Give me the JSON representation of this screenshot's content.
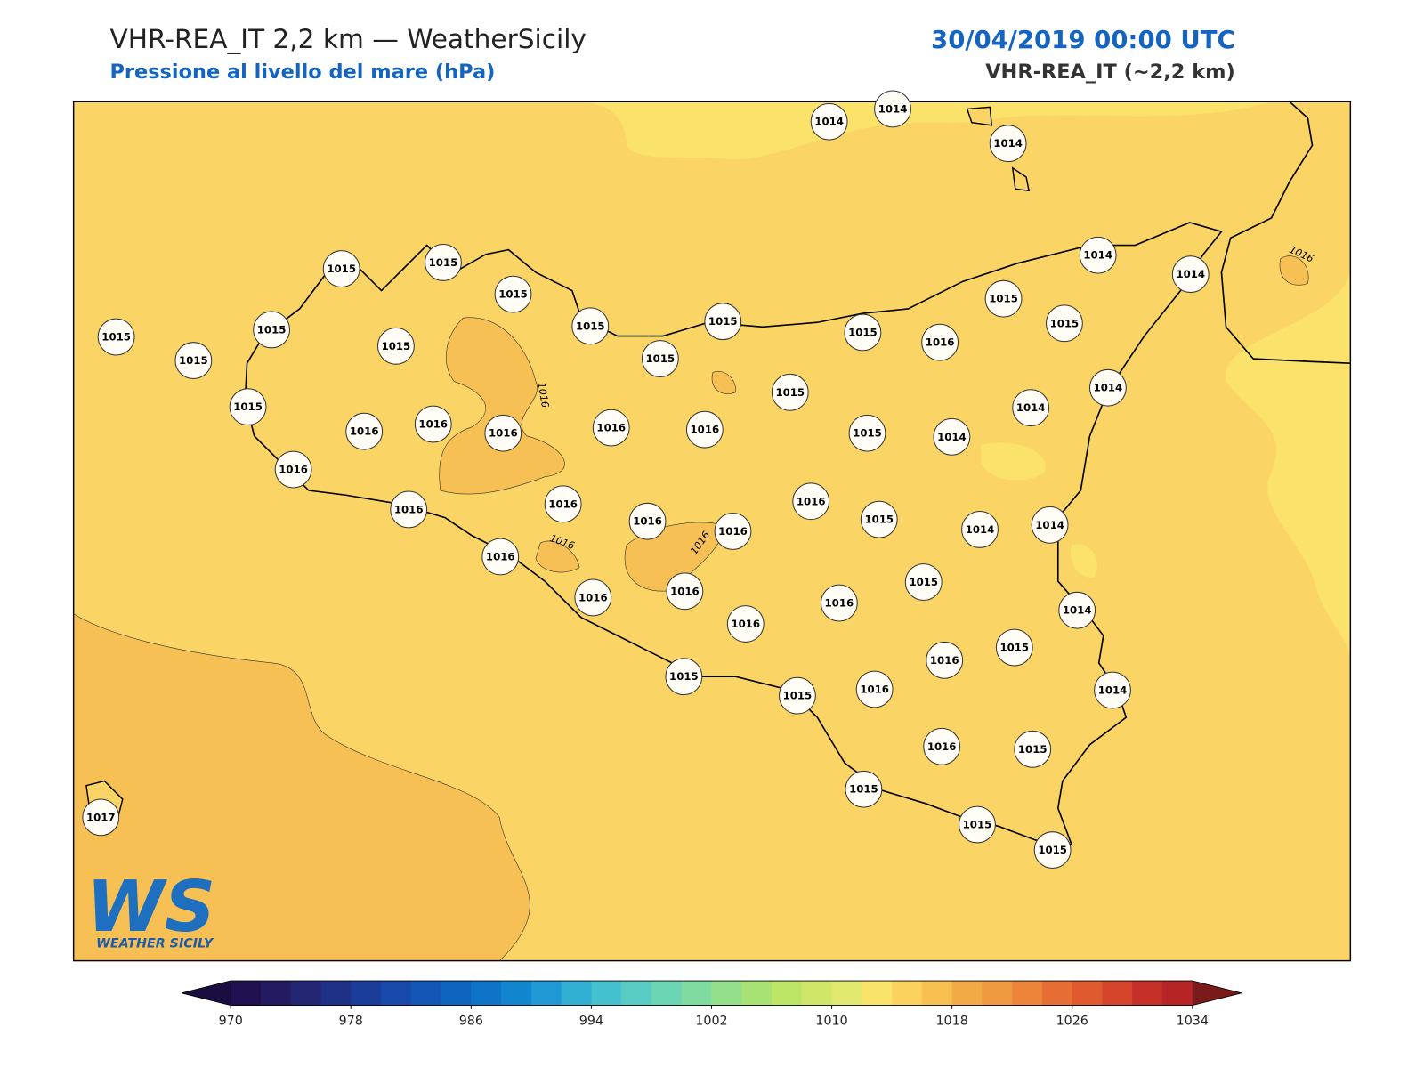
{
  "header": {
    "title": "VHR-REA_IT 2,2 km — WeatherSicily",
    "subtitle": "Pressione al livello del mare (hPa)",
    "date": "30/04/2019 00:00 UTC",
    "model": "VHR-REA_IT (~2,2 km)"
  },
  "stations": [
    1014,
    1014,
    1014,
    1015,
    1015,
    1015,
    1015,
    1015,
    1015,
    1015,
    1015,
    1015,
    1015,
    1015,
    1016,
    1016,
    1016,
    1016,
    1016,
    1016,
    1016,
    1016,
    1016,
    1016,
    1016,
    1016,
    1016,
    1016,
    1015,
    1015,
    1015,
    1015,
    1016,
    1015,
    1015,
    1014,
    1014,
    1014,
    1014,
    1014,
    1015,
    1016,
    1015,
    1014,
    1014,
    1015,
    1016,
    1014,
    1015,
    1016,
    1016,
    1014,
    1016,
    1015,
    1015,
    1015,
    1015,
    1017
  ],
  "contour_labels": [
    1016,
    1016,
    1016,
    1016
  ],
  "colorbar": {
    "range": [
      970,
      1034
    ],
    "ticks": [
      970,
      978,
      986,
      994,
      1002,
      1010,
      1018,
      1026,
      1034
    ],
    "colors": [
      "#221150",
      "#241a62",
      "#232673",
      "#1f3187",
      "#1b3d9a",
      "#1749aa",
      "#1456b5",
      "#0f64bf",
      "#0d74c8",
      "#1186cf",
      "#1f98d3",
      "#32b0d4",
      "#45c0cf",
      "#58cbc2",
      "#6bd4b2",
      "#7fdba0",
      "#93df8b",
      "#a8e275",
      "#bde566",
      "#d0e669",
      "#e1ea6f",
      "#fae36b",
      "#fbd25e",
      "#f7c050",
      "#f1aa46",
      "#ef9a40",
      "#ec843a",
      "#e66d33",
      "#df5a2e",
      "#d4452b",
      "#c53128",
      "#b52525"
    ],
    "under_color": "#1b0d40",
    "over_color": "#7a1a1a"
  },
  "logo": {
    "mark": "WS",
    "text": "WEATHER SICILY"
  }
}
